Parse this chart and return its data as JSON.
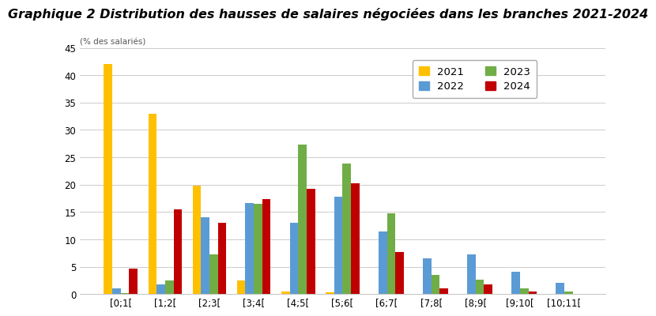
{
  "title": "Graphique 2 Distribution des hausses de salaires négociées dans les branches 2021-2024",
  "ylabel": "(% des salariés)",
  "categories": [
    "[0;1[",
    "[1;2[",
    "[2;3[",
    "[3;4[",
    "[4;5[",
    "[5;6[",
    "[6;7[",
    "[7;8[",
    "[8;9[",
    "[9;10[",
    "[10;11["
  ],
  "series": {
    "2021": [
      42,
      33,
      19.8,
      2.5,
      0.5,
      0.3,
      0,
      0,
      0,
      0,
      0
    ],
    "2022": [
      1,
      1.8,
      14,
      16.7,
      13,
      17.8,
      11.5,
      6.5,
      7.3,
      4.1,
      2.1
    ],
    "2023": [
      0.1,
      2.5,
      7.2,
      16.5,
      27.3,
      23.8,
      14.7,
      3.5,
      2.6,
      1.0,
      0.4
    ],
    "2024": [
      4.7,
      15.5,
      13,
      17.3,
      19.2,
      20.2,
      7.7,
      1.0,
      1.7,
      0.5,
      0
    ]
  },
  "colors": {
    "2021": "#FFC000",
    "2022": "#5B9BD5",
    "2023": "#70AD47",
    "2024": "#C00000"
  },
  "ylim": [
    0,
    45
  ],
  "yticks": [
    0,
    5,
    10,
    15,
    20,
    25,
    30,
    35,
    40,
    45
  ],
  "background_color": "#FFFFFF",
  "plot_bg_color": "#FFFFFF",
  "title_fontsize": 11.5,
  "legend_fontsize": 9.5,
  "bar_width": 0.19
}
